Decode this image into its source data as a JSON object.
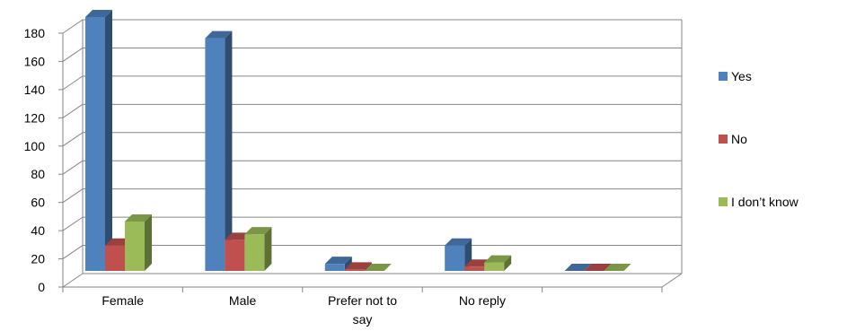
{
  "chart_data": {
    "type": "bar",
    "style": "3d-clustered-column",
    "categories": [
      "Female",
      "Male",
      "Prefer not to say",
      "No reply",
      ""
    ],
    "category_lines": [
      [
        "Female"
      ],
      [
        "Male"
      ],
      [
        "Prefer not to",
        "say"
      ],
      [
        "No reply"
      ],
      [
        ""
      ]
    ],
    "series": [
      {
        "name": "Yes",
        "color": "#4F81BD",
        "values": [
          180,
          165,
          5,
          18,
          0
        ]
      },
      {
        "name": "No",
        "color": "#C0504D",
        "values": [
          18,
          22,
          1,
          3,
          0
        ]
      },
      {
        "name": "I don’t know",
        "color": "#9BBB59",
        "values": [
          35,
          26,
          0,
          6,
          0
        ]
      }
    ],
    "ylim": [
      0,
      180
    ],
    "yticks": [
      0,
      20,
      40,
      60,
      80,
      100,
      120,
      140,
      160,
      180
    ],
    "grid": true,
    "legend": "right",
    "title": "",
    "xlabel": "",
    "ylabel": ""
  }
}
